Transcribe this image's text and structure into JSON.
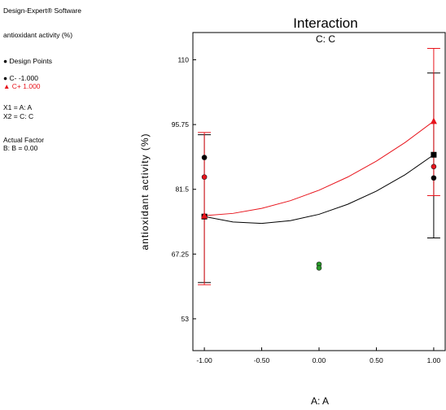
{
  "info_panel": {
    "software": "Design-Expert® Software",
    "response": "antioxidant activity (%)",
    "design_points_label": "Design Points",
    "c_low_label": "C- -1.000",
    "c_high_label": "C+ 1.000",
    "x1_label": "X1 = A: A",
    "x2_label": "X2 = C: C",
    "actual_factor_title": "Actual Factor",
    "actual_factor_value": "B: B = 0.00"
  },
  "colors": {
    "low_series": "#000000",
    "high_series": "#e8141c",
    "center_points": "#2a9a2a"
  },
  "chart_data": {
    "type": "line",
    "title": "Interaction",
    "subtitle": "C: C",
    "xlabel": "A: A",
    "ylabel": "antioxidant activity (%)",
    "xlim": [
      -1.1,
      1.1
    ],
    "ylim": [
      46,
      116
    ],
    "x_ticks": [
      "-1.00",
      "-0.50",
      "0.00",
      "0.50",
      "1.00"
    ],
    "y_ticks": [
      "53",
      "67.25",
      "81.5",
      "95.75",
      "110"
    ],
    "grid": false,
    "series": [
      {
        "name": "C- -1.000",
        "color": "#000000",
        "marker": "square",
        "curve": [
          [
            -1,
            75.5
          ],
          [
            -0.75,
            74.3
          ],
          [
            -0.5,
            74.0
          ],
          [
            -0.25,
            74.6
          ],
          [
            0,
            76.0
          ],
          [
            0.25,
            78.2
          ],
          [
            0.5,
            81.1
          ],
          [
            0.75,
            84.7
          ],
          [
            1,
            89.1
          ]
        ],
        "end_points": [
          [
            -1,
            75.5
          ],
          [
            1,
            89.1
          ]
        ],
        "error_bars": [
          [
            -1,
            61.0,
            93.5
          ],
          [
            1,
            70.8,
            107.1
          ]
        ],
        "design_points": [
          [
            -1,
            88.5
          ],
          [
            1,
            84.0
          ]
        ]
      },
      {
        "name": "C+ 1.000",
        "color": "#e8141c",
        "marker": "triangle",
        "curve": [
          [
            -1,
            75.7
          ],
          [
            -0.75,
            76.2
          ],
          [
            -0.5,
            77.3
          ],
          [
            -0.25,
            79.0
          ],
          [
            0,
            81.3
          ],
          [
            0.25,
            84.2
          ],
          [
            0.5,
            87.7
          ],
          [
            0.75,
            91.8
          ],
          [
            1,
            96.5
          ]
        ],
        "end_points": [
          [
            -1,
            75.7
          ],
          [
            1,
            96.5
          ]
        ],
        "error_bars": [
          [
            -1,
            60.5,
            94.0
          ],
          [
            1,
            80.1,
            112.5
          ]
        ],
        "design_points": [
          [
            -1,
            84.2
          ],
          [
            1,
            86.5
          ]
        ]
      },
      {
        "name": "Center points",
        "color": "#2a9a2a",
        "marker": "circle",
        "design_points": [
          [
            0,
            65.0
          ],
          [
            0,
            64.2
          ]
        ]
      }
    ]
  }
}
